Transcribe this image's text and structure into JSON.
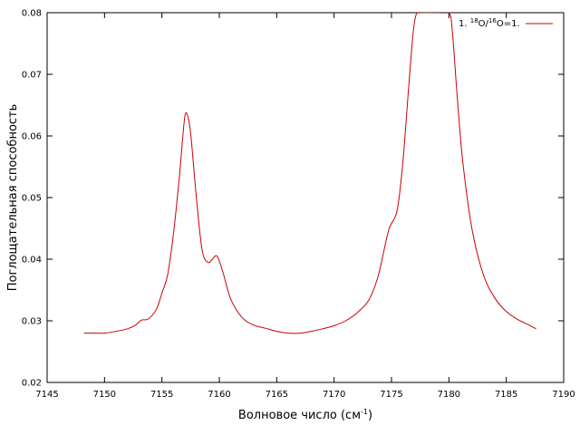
{
  "chart_data": {
    "type": "line",
    "xlabel": "Волновое число (см",
    "xlabel_sup": "-1",
    "xlabel_end": ")",
    "ylabel": "Поглощательная способность",
    "xlim": [
      7145,
      7190
    ],
    "ylim": [
      0.02,
      0.08
    ],
    "xticks": [
      "7145",
      "7150",
      "7155",
      "7160",
      "7165",
      "7170",
      "7175",
      "7180",
      "7185",
      "7190"
    ],
    "yticks": [
      "0.02",
      "0.03",
      "0.04",
      "0.05",
      "0.06",
      "0.07",
      "0.08"
    ],
    "legend": {
      "position": "top-right",
      "parts": [
        "1. ",
        "18",
        "O/",
        "16",
        "O=1."
      ]
    },
    "series": [
      {
        "color": "#cc0000",
        "x": [
          7148.2,
          7149,
          7150,
          7151,
          7152,
          7152.7,
          7153.2,
          7153.8,
          7154.5,
          7155,
          7155.5,
          7156,
          7156.5,
          7156.8,
          7157,
          7157.2,
          7157.5,
          7158,
          7158.5,
          7159,
          7159.4,
          7159.8,
          7160.3,
          7161,
          7162,
          7163,
          7164,
          7165,
          7166,
          7167,
          7168,
          7169,
          7170,
          7171,
          7172,
          7173,
          7173.8,
          7174.3,
          7174.8,
          7175.5,
          7176,
          7176.5,
          7176.9,
          7177.2,
          7177.5,
          7178,
          7179,
          7180,
          7180.3,
          7180.7,
          7181.2,
          7182,
          7183,
          7184,
          7185,
          7186,
          7187,
          7187.6
        ],
        "y": [
          0.028,
          0.028,
          0.028,
          0.0283,
          0.0287,
          0.0293,
          0.0301,
          0.0303,
          0.0318,
          0.0345,
          0.0375,
          0.044,
          0.053,
          0.0595,
          0.0632,
          0.0635,
          0.0605,
          0.05,
          0.0415,
          0.0395,
          0.04,
          0.0405,
          0.038,
          0.0335,
          0.0305,
          0.0293,
          0.0288,
          0.0283,
          0.028,
          0.028,
          0.0283,
          0.0287,
          0.0292,
          0.03,
          0.0313,
          0.0333,
          0.037,
          0.041,
          0.045,
          0.048,
          0.056,
          0.068,
          0.077,
          0.08,
          0.08,
          0.08,
          0.08,
          0.08,
          0.077,
          0.067,
          0.056,
          0.045,
          0.0375,
          0.0337,
          0.0315,
          0.0302,
          0.0293,
          0.0287
        ]
      }
    ]
  }
}
